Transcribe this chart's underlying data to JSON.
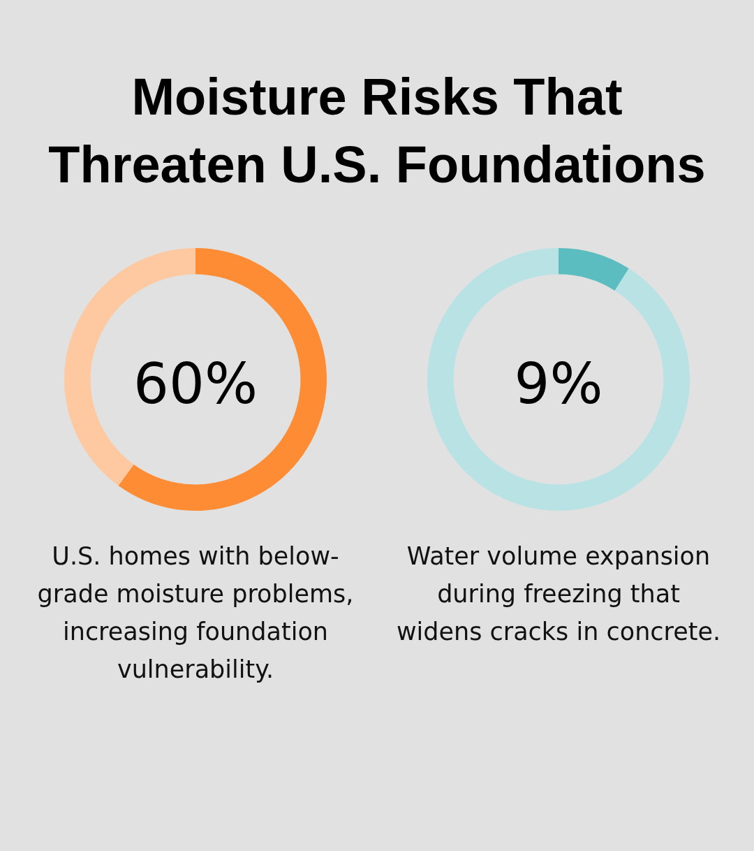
{
  "chart_data": [
    {
      "type": "donut",
      "title": "Moisture Risks That Threaten U.S. Foundations",
      "categories": [
        null,
        null
      ],
      "values": [
        60,
        40
      ],
      "colors": [
        "#fe8c34",
        "#fec9a0"
      ],
      "annotations": [
        "60%",
        "U.S. homes with below-grade moisture problems, increasing foundation vulnerability."
      ]
    },
    {
      "type": "donut",
      "categories": [
        null,
        null
      ],
      "values": [
        9,
        91
      ],
      "colors": [
        "#5bbdc0",
        "#b8e2e4"
      ],
      "annotations": [
        "9%",
        "Water volume expansion during freezing that widens cracks in concrete."
      ]
    }
  ]
}
